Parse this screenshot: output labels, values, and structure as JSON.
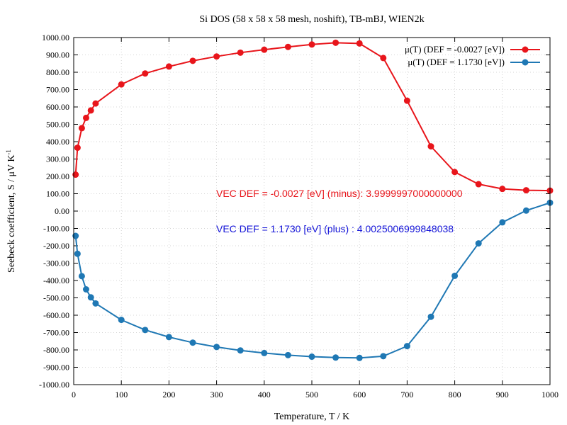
{
  "chart_data": {
    "type": "line",
    "title": "Si DOS (58 x 58 x 58 mesh, noshift), TB-mBJ, WIEN2k",
    "xlabel": "Temperature, T / K",
    "ylabel": "Seebeck coefficient, S / μV K",
    "ylabel_sup": "-1",
    "xlim": [
      0,
      1000
    ],
    "ylim": [
      -1000,
      1000
    ],
    "xticks": [
      0,
      100,
      200,
      300,
      400,
      500,
      600,
      700,
      800,
      900,
      1000
    ],
    "yticks": [
      -1000,
      -900,
      -800,
      -700,
      -600,
      -500,
      -400,
      -300,
      -200,
      -100,
      0,
      100,
      200,
      300,
      400,
      500,
      600,
      700,
      800,
      900,
      1000
    ],
    "xtick_labels": [
      "0",
      "100",
      "200",
      "300",
      "400",
      "500",
      "600",
      "700",
      "800",
      "900",
      "1000"
    ],
    "ytick_labels": [
      "-1000.00",
      "-900.00",
      "-800.00",
      "-700.00",
      "-600.00",
      "-500.00",
      "-400.00",
      "-300.00",
      "-200.00",
      "-100.00",
      "0.00",
      "100.00",
      "200.00",
      "300.00",
      "400.00",
      "500.00",
      "600.00",
      "700.00",
      "800.00",
      "900.00",
      "1000.00"
    ],
    "grid": true,
    "legend_position": "top-right",
    "series": [
      {
        "name": "μ(T) (DEF = -0.0027 [eV])",
        "color": "#e8151b",
        "x": [
          4,
          8,
          17,
          26,
          36,
          46,
          100,
          150,
          200,
          250,
          300,
          350,
          400,
          450,
          500,
          550,
          600,
          650,
          700,
          750,
          800,
          850,
          900,
          950,
          1000
        ],
        "y": [
          210,
          365,
          478,
          537,
          580,
          620,
          730,
          793,
          833,
          866,
          891,
          913,
          930,
          946,
          960,
          970,
          966,
          882,
          636,
          373,
          225,
          155,
          128,
          120,
          118
        ]
      },
      {
        "name": "μ(T) (DEF =  1.1730 [eV])",
        "color": "#1f78b4",
        "x": [
          4,
          8,
          17,
          26,
          36,
          46,
          100,
          150,
          200,
          250,
          300,
          350,
          400,
          450,
          500,
          550,
          600,
          650,
          700,
          750,
          800,
          850,
          900,
          950,
          1000
        ],
        "y": [
          -143,
          -246,
          -375,
          -451,
          -497,
          -532,
          -627,
          -685,
          -726,
          -758,
          -783,
          -803,
          -818,
          -830,
          -839,
          -844,
          -846,
          -836,
          -778,
          -609,
          -373,
          -186,
          -65,
          3,
          48
        ]
      }
    ],
    "annotations": [
      {
        "text": "VEC DEF = -0.0027 [eV] (minus): 3.9999997000000000",
        "color": "#e8151b"
      },
      {
        "text": "VEC DEF =  1.1730 [eV] (plus) : 4.0025006999848038",
        "color": "#1414d8"
      }
    ]
  }
}
